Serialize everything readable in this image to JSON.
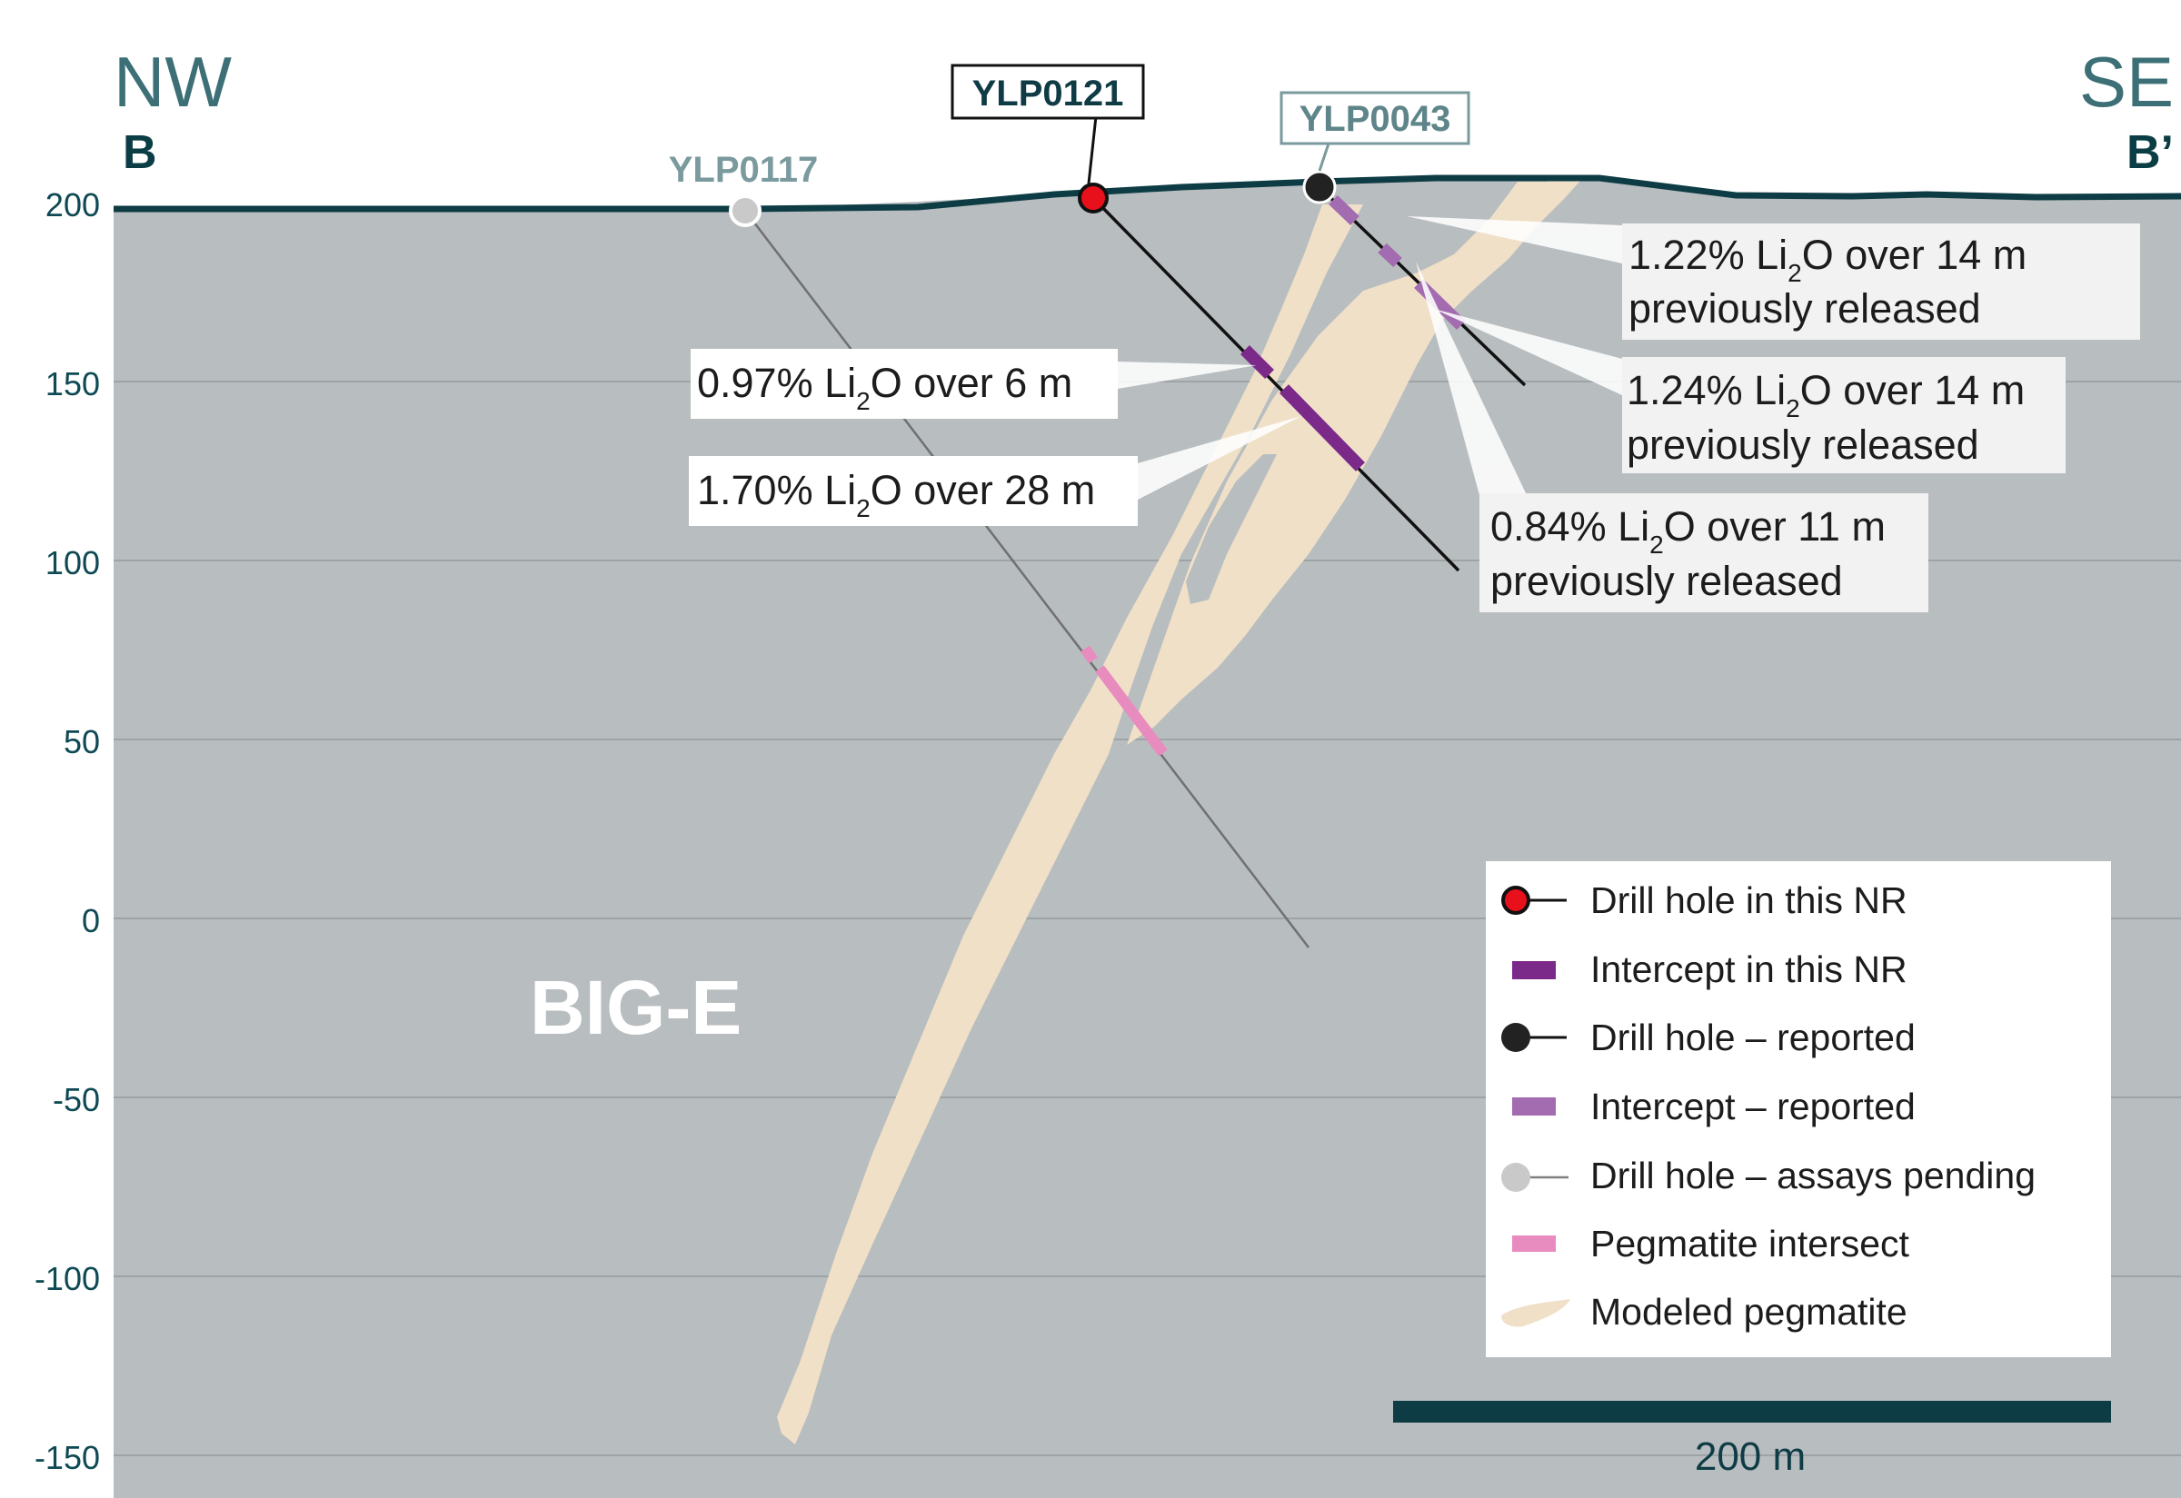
{
  "header": {
    "left_direction": "NW",
    "left_section": "B",
    "right_direction": "SE",
    "right_section": "B’"
  },
  "y_axis": {
    "ticks": [
      "200",
      "150",
      "100",
      "50",
      "0",
      "-50",
      "-100",
      "-150"
    ]
  },
  "zone_label": "BIG-E",
  "drill_holes": [
    {
      "id": "YLP0121",
      "status": "Drill hole in this NR",
      "color": "#e8101a"
    },
    {
      "id": "YLP0043",
      "status": "Drill hole – reported",
      "color": "#222222"
    },
    {
      "id": "YLP0117",
      "status": "Drill hole – assays pending",
      "color": "#c9c9c9"
    }
  ],
  "callouts": [
    {
      "hole": "YLP0121",
      "grade_pre": "0.97% Li",
      "sub": "2",
      "grade_post": "O over 6 m",
      "note": ""
    },
    {
      "hole": "YLP0121",
      "grade_pre": "1.70% Li",
      "sub": "2",
      "grade_post": "O over 28 m",
      "note": ""
    },
    {
      "hole": "YLP0043",
      "grade_pre": "1.22% Li",
      "sub": "2",
      "grade_post": "O over 14 m",
      "note": "previously released"
    },
    {
      "hole": "YLP0043",
      "grade_pre": "1.24% Li",
      "sub": "2",
      "grade_post": "O over 14 m",
      "note": "previously released"
    },
    {
      "hole": "YLP0043",
      "grade_pre": "0.84% Li",
      "sub": "2",
      "grade_post": "O over 11 m",
      "note": "previously released"
    }
  ],
  "legend": [
    {
      "label": "Drill hole in this NR",
      "icon": "red-drill-hole-icon"
    },
    {
      "label": "Intercept in this NR",
      "icon": "dark-purple-intercept-icon"
    },
    {
      "label": "Drill hole – reported",
      "icon": "black-drill-hole-icon"
    },
    {
      "label": "Intercept – reported",
      "icon": "purple-intercept-icon"
    },
    {
      "label": "Drill hole – assays pending",
      "icon": "grey-drill-hole-icon"
    },
    {
      "label": "Pegmatite intersect",
      "icon": "pink-intercept-icon"
    },
    {
      "label": "Modeled pegmatite",
      "icon": "pegmatite-swatch-icon"
    }
  ],
  "scale_bar": {
    "label": "200 m"
  },
  "colors": {
    "background_rock": "#b8bdbf",
    "topography": "#0e3c45",
    "pegmatite": "#f0e0c8",
    "intercept_this_nr": "#7b2a8a",
    "intercept_reported": "#a36bb0",
    "pegmatite_intersect": "#e88cbf"
  }
}
